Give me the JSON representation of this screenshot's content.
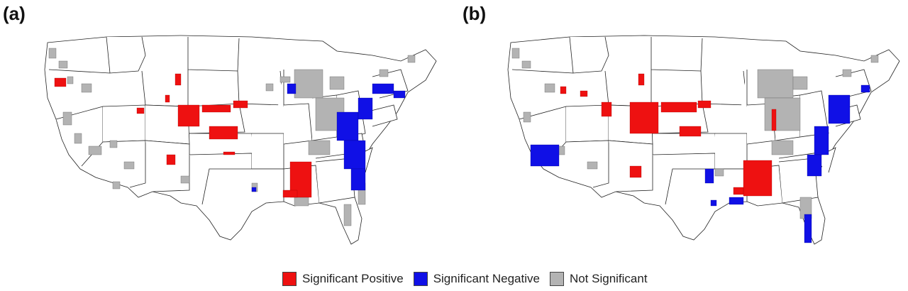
{
  "panels": [
    {
      "id": "a",
      "label": "(a)"
    },
    {
      "id": "b",
      "label": "(b)"
    }
  ],
  "legend": {
    "items": [
      {
        "label": "Significant Positive",
        "color": "#ee1111"
      },
      {
        "label": "Significant Negative",
        "color": "#1010e6"
      },
      {
        "label": "Not Significant",
        "color": "#b3b3b3"
      }
    ]
  },
  "colors": {
    "positive": "#ee1111",
    "negative": "#1010e6",
    "not_significant": "#b3b3b3",
    "state_border": "#222222"
  }
}
